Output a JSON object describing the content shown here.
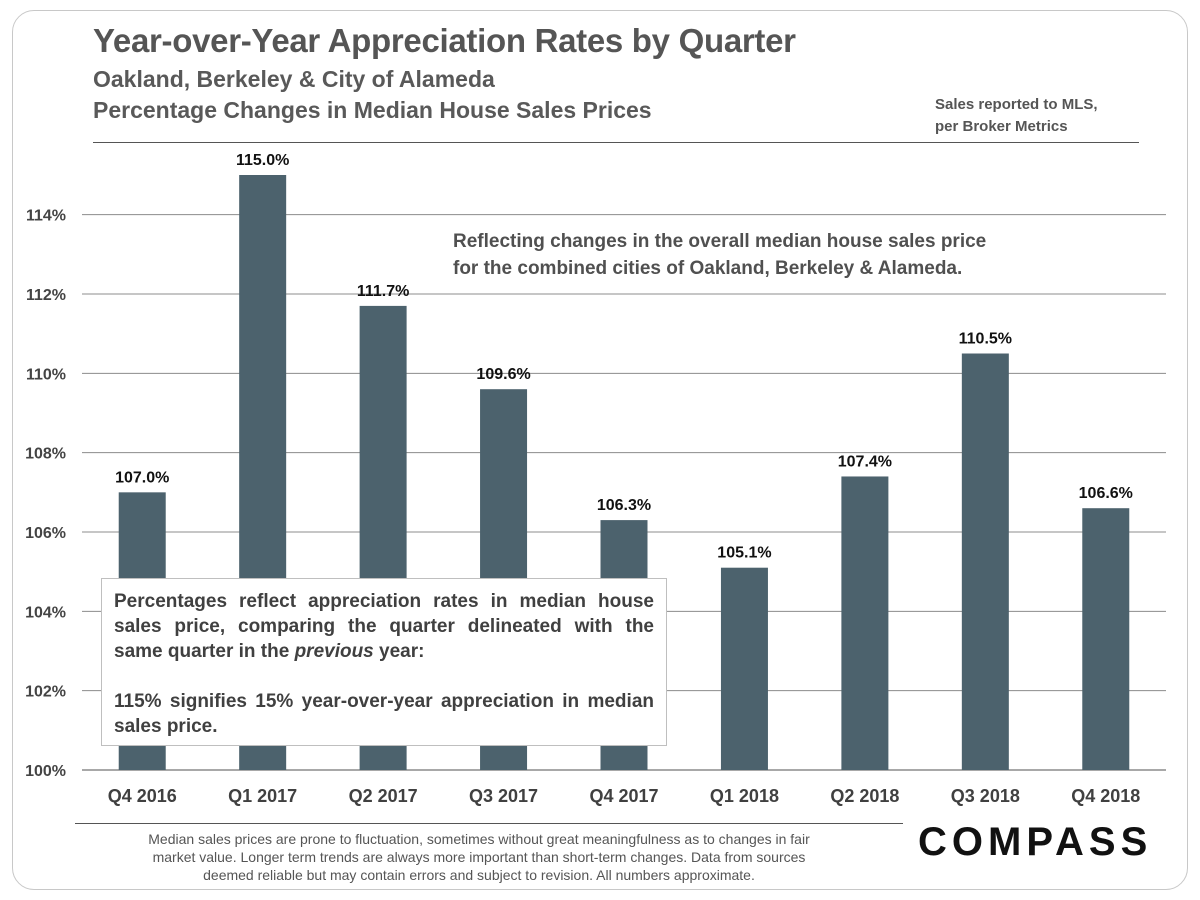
{
  "header": {
    "title": "Year-over-Year Appreciation Rates by Quarter",
    "subtitle_1": "Oakland, Berkeley & City of Alameda",
    "subtitle_2": "Percentage Changes in Median House Sales Prices",
    "source_line_1": "Sales reported to MLS,",
    "source_line_2": "per Broker Metrics"
  },
  "annotations": {
    "note_line_1": "Reflecting changes in the overall median house sales price",
    "note_line_2": "for the combined  cities of Oakland, Berkeley & Alameda.",
    "box_line_1": "Percentages reflect appreciation rates in median house sales price, comparing the quarter delineated with the same quarter in the",
    "box_italic": "previous",
    "box_line_1_end": "year:",
    "box_line_2": "115% signifies 15% year-over-year appreciation in median sales price."
  },
  "footer": {
    "line_1": "Median sales prices are prone to fluctuation, sometimes without great meaningfulness as to changes in fair",
    "line_2": "market value. Longer term trends are always more important than short-term changes. Data from sources",
    "line_3": "deemed reliable but may contain errors and subject to revision. All numbers approximate.",
    "logo": "COMPASS"
  },
  "colors": {
    "bar": "#4c626d",
    "grid": "#8c8c8c",
    "text": "#404040"
  },
  "chart_data": {
    "type": "bar",
    "title": "Year-over-Year Appreciation Rates by Quarter",
    "xlabel": "",
    "ylabel": "",
    "categories": [
      "Q4 2016",
      "Q1 2017",
      "Q2 2017",
      "Q3 2017",
      "Q4 2017",
      "Q1 2018",
      "Q2 2018",
      "Q3 2018",
      "Q4 2018"
    ],
    "values": [
      107.0,
      115.0,
      111.7,
      109.6,
      106.3,
      105.1,
      107.4,
      110.5,
      106.6
    ],
    "data_labels": [
      "107.0%",
      "115.0%",
      "111.7%",
      "109.6%",
      "106.3%",
      "105.1%",
      "107.4%",
      "110.5%",
      "106.6%"
    ],
    "yticks": [
      100,
      102,
      104,
      106,
      108,
      110,
      112,
      114
    ],
    "ytick_labels": [
      "100%",
      "102%",
      "104%",
      "106%",
      "108%",
      "110%",
      "112%",
      "114%"
    ],
    "ylim": [
      100,
      115
    ],
    "grid": true,
    "legend": "none"
  }
}
